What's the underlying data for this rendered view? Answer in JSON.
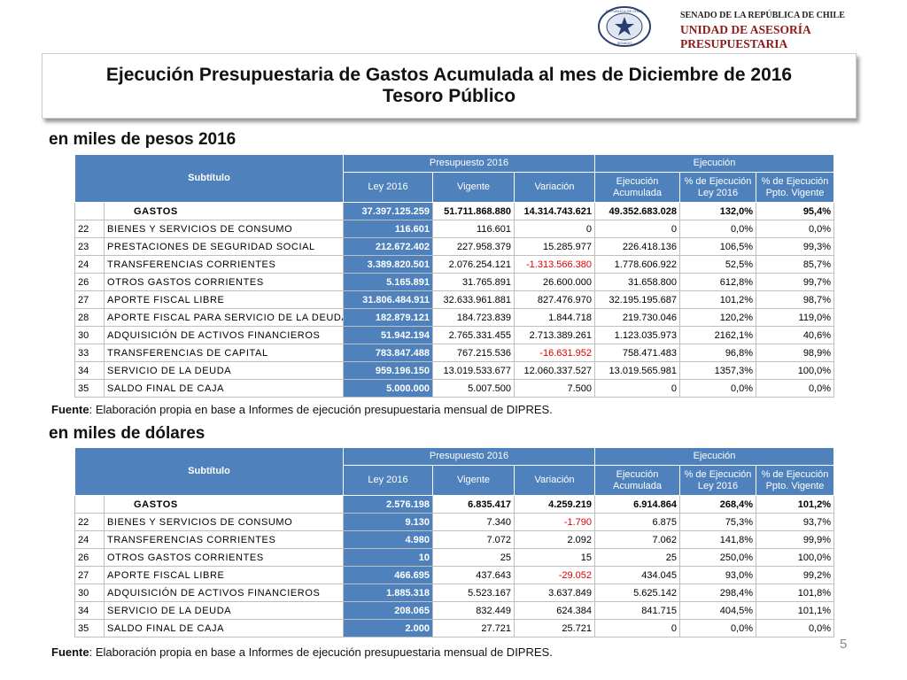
{
  "header": {
    "logo_ring": "REPÚBLICA DE CHILE",
    "logo_base": "SENADO",
    "senado": "SENADO DE LA REPÚBLICA DE CHILE",
    "unit": "UNIDAD DE ASESORÍA PRESUPUESTARIA"
  },
  "title": {
    "line1": "Ejecución Presupuestaria de Gastos Acumulada al mes de Diciembre de 2016",
    "line2": "Tesoro Público"
  },
  "tables": [
    {
      "caption": "en miles de pesos 2016",
      "head": {
        "subtitulo": "Subtítulo",
        "presupuesto": "Presupuesto 2016",
        "ejecucion": "Ejecución",
        "columns": [
          "Ley 2016",
          "Vigente",
          "Variación",
          "Ejecución Acumulada",
          "% de Ejecución Ley 2016",
          "% de Ejecución Ppto. Vigente"
        ]
      },
      "rows": [
        {
          "name": "GASTOS",
          "values": [
            "37.397.125.259",
            "51.711.868.880",
            "14.314.743.621",
            "49.352.683.028",
            "132,0%",
            "95,4%"
          ]
        },
        {
          "code": "22",
          "name": "BIENES Y SERVICIOS DE CONSUMO",
          "values": [
            "116.601",
            "116.601",
            "0",
            "0",
            "0,0%",
            "0,0%"
          ]
        },
        {
          "code": "23",
          "name": "PRESTACIONES DE SEGURIDAD SOCIAL",
          "values": [
            "212.672.402",
            "227.958.379",
            "15.285.977",
            "226.418.136",
            "106,5%",
            "99,3%"
          ]
        },
        {
          "code": "24",
          "name": "TRANSFERENCIAS CORRIENTES",
          "values": [
            "3.389.820.501",
            "2.076.254.121",
            "-1.313.566.380",
            "1.778.606.922",
            "52,5%",
            "85,7%"
          ]
        },
        {
          "code": "26",
          "name": "OTROS GASTOS CORRIENTES",
          "values": [
            "5.165.891",
            "31.765.891",
            "26.600.000",
            "31.658.800",
            "612,8%",
            "99,7%"
          ]
        },
        {
          "code": "27",
          "name": "APORTE FISCAL LIBRE",
          "values": [
            "31.806.484.911",
            "32.633.961.881",
            "827.476.970",
            "32.195.195.687",
            "101,2%",
            "98,7%"
          ]
        },
        {
          "code": "28",
          "name": "APORTE FISCAL PARA SERVICIO DE LA DEUDA",
          "values": [
            "182.879.121",
            "184.723.839",
            "1.844.718",
            "219.730.046",
            "120,2%",
            "119,0%"
          ]
        },
        {
          "code": "30",
          "name": "ADQUISICIÓN DE ACTIVOS FINANCIEROS",
          "values": [
            "51.942.194",
            "2.765.331.455",
            "2.713.389.261",
            "1.123.035.973",
            "2162,1%",
            "40,6%"
          ]
        },
        {
          "code": "33",
          "name": "TRANSFERENCIAS DE CAPITAL",
          "values": [
            "783.847.488",
            "767.215.536",
            "-16.631.952",
            "758.471.483",
            "96,8%",
            "98,9%"
          ]
        },
        {
          "code": "34",
          "name": "SERVICIO DE LA DEUDA",
          "values": [
            "959.196.150",
            "13.019.533.677",
            "12.060.337.527",
            "13.019.565.981",
            "1357,3%",
            "100,0%"
          ]
        },
        {
          "code": "35",
          "name": "SALDO FINAL DE CAJA",
          "values": [
            "5.000.000",
            "5.007.500",
            "7.500",
            "0",
            "0,0%",
            "0,0%"
          ]
        }
      ],
      "source": {
        "label": "Fuente",
        "text": ": Elaboración propia en base  a Informes de ejecución presupuestaria mensual de DIPRES."
      }
    },
    {
      "caption": "en miles de dólares",
      "head": {
        "subtitulo": "Subtítulo",
        "presupuesto": "Presupuesto 2016",
        "ejecucion": "Ejecución",
        "columns": [
          "Ley 2016",
          "Vigente",
          "Variación",
          "Ejecución Acumulada",
          "% de Ejecución Ley 2016",
          "% de Ejecución Ppto. Vigente"
        ]
      },
      "rows": [
        {
          "name": "GASTOS",
          "values": [
            "2.576.198",
            "6.835.417",
            "4.259.219",
            "6.914.864",
            "268,4%",
            "101,2%"
          ]
        },
        {
          "code": "22",
          "name": "BIENES Y SERVICIOS DE CONSUMO",
          "values": [
            "9.130",
            "7.340",
            "-1.790",
            "6.875",
            "75,3%",
            "93,7%"
          ]
        },
        {
          "code": "24",
          "name": "TRANSFERENCIAS CORRIENTES",
          "values": [
            "4.980",
            "7.072",
            "2.092",
            "7.062",
            "141,8%",
            "99,9%"
          ]
        },
        {
          "code": "26",
          "name": "OTROS GASTOS CORRIENTES",
          "values": [
            "10",
            "25",
            "15",
            "25",
            "250,0%",
            "100,0%"
          ]
        },
        {
          "code": "27",
          "name": "APORTE FISCAL LIBRE",
          "values": [
            "466.695",
            "437.643",
            "-29.052",
            "434.045",
            "93,0%",
            "99,2%"
          ]
        },
        {
          "code": "30",
          "name": "ADQUISICIÓN DE ACTIVOS FINANCIEROS",
          "values": [
            "1.885.318",
            "5.523.167",
            "3.637.849",
            "5.625.142",
            "298,4%",
            "101,8%"
          ]
        },
        {
          "code": "34",
          "name": "SERVICIO DE LA DEUDA",
          "values": [
            "208.065",
            "832.449",
            "624.384",
            "841.715",
            "404,5%",
            "101,1%"
          ]
        },
        {
          "code": "35",
          "name": "SALDO FINAL DE CAJA",
          "values": [
            "2.000",
            "27.721",
            "25.721",
            "0",
            "0,0%",
            "0,0%"
          ]
        }
      ],
      "source": {
        "label": "Fuente",
        "text": ": Elaboración propia en base  a Informes de ejecución presupuestaria mensual de DIPRES."
      }
    }
  ],
  "page_number": "5"
}
